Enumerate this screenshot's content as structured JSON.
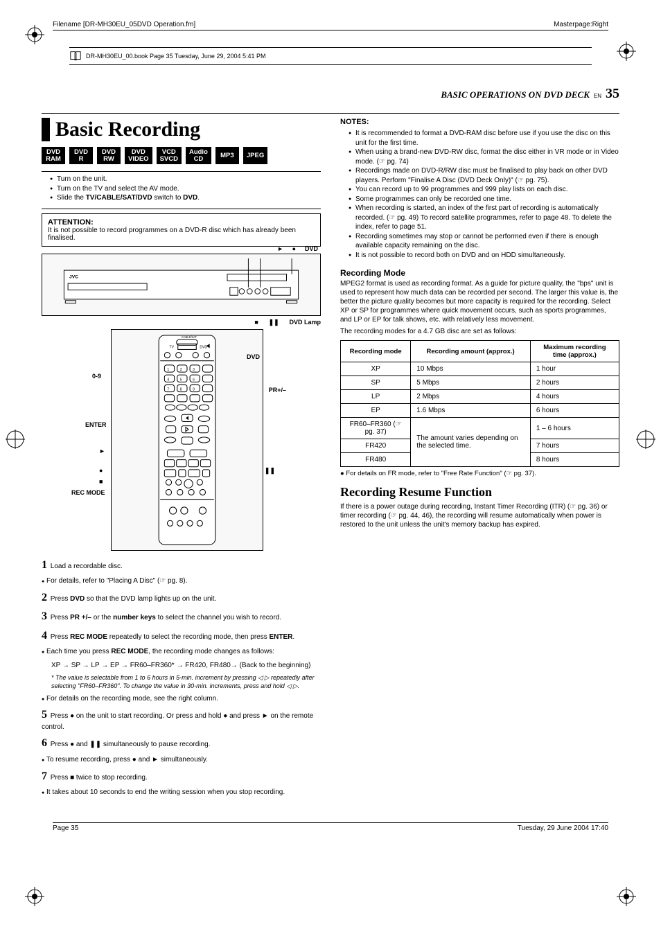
{
  "meta": {
    "filename_label": "Filename [DR-MH30EU_05DVD Operation.fm]",
    "masterpage": "Masterpage:Right",
    "bookline": "DR-MH30EU_00.book  Page 35  Tuesday, June 29, 2004  5:41 PM",
    "footer_left": "Page 35",
    "footer_right": "Tuesday, 29 June 2004  17:40"
  },
  "header": {
    "section_title": "BASIC OPERATIONS ON DVD DECK",
    "en_label": "EN",
    "page_number": "35"
  },
  "left": {
    "title": "Basic Recording",
    "formats": [
      "DVD RAM",
      "DVD R",
      "DVD RW",
      "DVD VIDEO",
      "VCD SVCD",
      "Audio CD",
      "MP3",
      "JPEG"
    ],
    "setup_bullets": [
      "Turn on the unit.",
      "Turn on the TV and select the AV mode.",
      "Slide the <b>TV/CABLE/SAT/DVD</b> switch to <b>DVD</b>."
    ],
    "attention_hd": "ATTENTION:",
    "attention_body": "It is not possible to record programmes on a DVD-R disc which has already been finalised.",
    "device_labels": {
      "play": "►",
      "rec": "●",
      "dvd": "DVD",
      "stop": "■",
      "pause": "❚❚",
      "lamp": "DVD Lamp",
      "jvc": "JVC"
    },
    "remote_labels": {
      "cable": "CABLE/SAT",
      "tv": "TV",
      "dvd": "DVD",
      "dvd_side": "DVD",
      "nums": "0-9",
      "pr": "PR+/–",
      "enter": "ENTER",
      "play": "►",
      "rec": "●",
      "pause": "❚❚",
      "stop": "■",
      "recmode": "REC MODE"
    },
    "steps": [
      {
        "n": "1",
        "text": "Load a recordable disc."
      },
      {
        "bullet": "For details, refer to \"Placing A Disc\" (☞ pg. 8)."
      },
      {
        "n": "2",
        "text": "Press <b>DVD</b> so that the DVD lamp lights up on the unit."
      },
      {
        "n": "3",
        "text": "Press <b>PR +/–</b> or the <b>number keys</b> to select the channel you wish to record."
      },
      {
        "n": "4",
        "text": "Press <b>REC MODE</b> repeatedly to select the recording mode, then press <b>ENTER</b>."
      },
      {
        "bullet": "Each time you press <b>REC MODE</b>, the recording mode changes as follows:"
      },
      {
        "plain": "XP → SP → LP → EP → FR60–FR360* → FR420, FR480→ (Back to the beginning)"
      },
      {
        "small": "* The value is selectable from 1 to 6 hours in 5-min. increment by pressing ◁ ▷ repeatedly after selecting \"FR60–FR360\". To change the value in 30-min. increments, press and hold ◁ ▷."
      },
      {
        "bullet": "For details on the recording mode, see the right column."
      },
      {
        "n": "5",
        "text": "Press ● on the unit to start recording. Or press and hold ● and press ► on the remote control."
      },
      {
        "n": "6",
        "text": "Press ● and ❚❚ simultaneously to pause recording."
      },
      {
        "bullet": "To resume recording, press ● and ► simultaneously."
      },
      {
        "n": "7",
        "text": "Press ■ twice to stop recording."
      },
      {
        "bullet": "It takes about 10 seconds to end the writing session when you stop recording."
      }
    ]
  },
  "right": {
    "notes_hd": "NOTES:",
    "notes": [
      "It is recommended to format a DVD-RAM disc before use if you use the disc on this unit for the first time.",
      "When using a brand-new DVD-RW disc, format the disc either in VR mode or in Video mode. (☞ pg. 74)",
      "Recordings made on DVD-R/RW disc must be finalised to play back on other DVD players. Perform \"Finalise A Disc (DVD Deck Only)\" (☞ pg. 75).",
      "You can record up to 99 programmes and 999 play lists on each disc.",
      "Some programmes can only be recorded one time.",
      "When recording is started, an index of the first part of recording is automatically recorded. (☞ pg. 49) To record satellite programmes, refer to page 48. To delete the index, refer to page 51.",
      "Recording sometimes may stop or cannot be performed even if there is enough available capacity remaining on the disc.",
      "It is not possible to record both on DVD and on HDD simultaneously."
    ],
    "rec_mode_hd": "Recording Mode",
    "rec_mode_body": "MPEG2 format is used as recording format. As a guide for picture quality, the \"bps\" unit is used to represent how much data can be recorded per second. The larger this value is, the better the picture quality becomes but more capacity is required for the recording. Select XP or SP for programmes where quick movement occurs, such as sports programmes, and LP or EP for talk shows, etc. with relatively less movement.",
    "rec_mode_intro": "The recording modes for a 4.7 GB disc are set as follows:",
    "table": {
      "headers": [
        "Recording mode",
        "Recording amount (approx.)",
        "Maximum recording time (approx.)"
      ],
      "rows_simple": [
        [
          "XP",
          "10 Mbps",
          "1 hour"
        ],
        [
          "SP",
          "5 Mbps",
          "2 hours"
        ],
        [
          "LP",
          "2 Mbps",
          "4 hours"
        ],
        [
          "EP",
          "1.6 Mbps",
          "6 hours"
        ]
      ],
      "merged_amount": "The amount varies depending on the selected time.",
      "fr_rows": [
        [
          "FR60–FR360 (☞ pg. 37)",
          "1 – 6 hours"
        ],
        [
          "FR420",
          "7 hours"
        ],
        [
          "FR480",
          "8 hours"
        ]
      ]
    },
    "table_note": "● For details on FR mode, refer to \"Free Rate Function\" (☞ pg. 37).",
    "resume_hd": "Recording Resume Function",
    "resume_body": "If there is a power outage during recording, Instant Timer Recording (ITR) (☞ pg. 36) or timer recording (☞ pg. 44, 46), the recording will resume automatically when power is restored to the unit unless the unit's memory backup has expired."
  }
}
